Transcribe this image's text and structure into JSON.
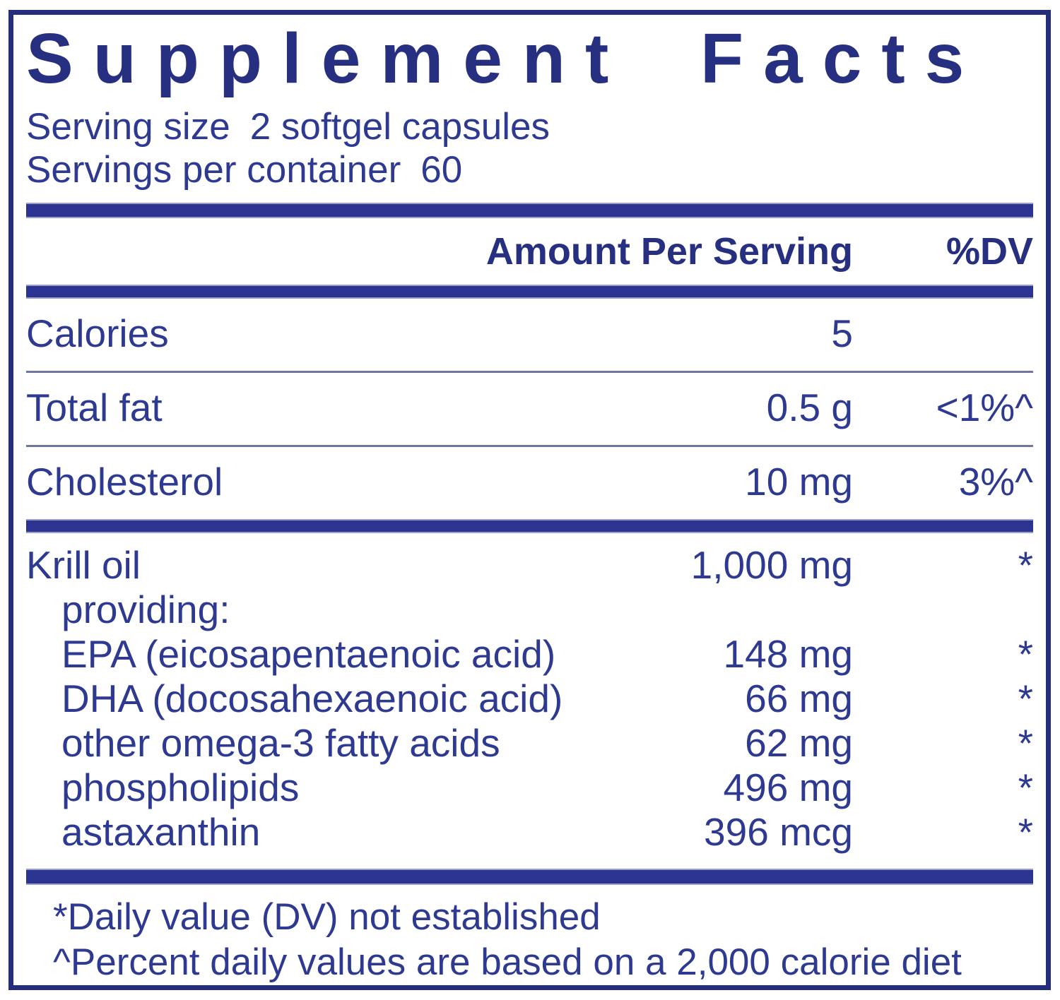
{
  "label": {
    "title": "Supplement Facts",
    "serving_size_label": "Serving size",
    "serving_size_value": "2 softgel capsules",
    "servings_per_container_label": "Servings per container",
    "servings_per_container_value": "60"
  },
  "columns": {
    "amount": "Amount Per Serving",
    "dv": "%DV"
  },
  "rows": {
    "main": [
      {
        "name": "Calories",
        "amount": "5",
        "dv": ""
      },
      {
        "name": "Total fat",
        "amount": "0.5 g",
        "dv": "<1%^"
      },
      {
        "name": "Cholesterol",
        "amount": "10 mg",
        "dv": "3%^"
      }
    ],
    "krill": [
      {
        "name": "Krill oil",
        "amount": "1,000 mg",
        "dv": "*"
      },
      {
        "name": "providing:",
        "amount": "",
        "dv": ""
      },
      {
        "name": "EPA (eicosapentaenoic acid)",
        "amount": "148 mg",
        "dv": "*"
      },
      {
        "name": "DHA (docosahexaenoic acid)",
        "amount": "66 mg",
        "dv": "*"
      },
      {
        "name": "other omega-3 fatty acids",
        "amount": "62 mg",
        "dv": "*"
      },
      {
        "name": "phospholipids",
        "amount": "496 mg",
        "dv": "*"
      },
      {
        "name": "astaxanthin",
        "amount": "396 mcg",
        "dv": "*"
      }
    ]
  },
  "footnotes": [
    "*Daily value (DV) not established",
    "^Percent daily values are based on a 2,000 calorie diet"
  ],
  "colors": {
    "navy_dark": "#252e7b",
    "navy_text": "#2e3a92"
  }
}
